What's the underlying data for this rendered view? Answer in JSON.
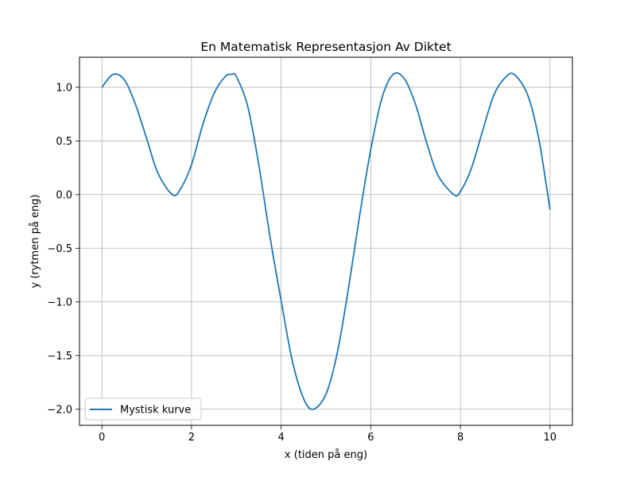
{
  "chart_data": {
    "type": "line",
    "title": "En Matematisk Representasjon Av Diktet",
    "xlabel": "x (tiden på eng)",
    "ylabel": "y (rytmen på eng)",
    "xlim": [
      -0.5,
      10.5
    ],
    "ylim": [
      -2.15,
      1.28
    ],
    "xticks": [
      0,
      2,
      4,
      6,
      8,
      10
    ],
    "xtick_labels": [
      "0",
      "2",
      "4",
      "6",
      "8",
      "10"
    ],
    "yticks": [
      -2.0,
      -1.5,
      -1.0,
      -0.5,
      0.0,
      0.5,
      1.0
    ],
    "ytick_labels": [
      "−2.0",
      "−1.5",
      "−1.0",
      "−0.5",
      "0.0",
      "0.5",
      "1.0"
    ],
    "grid": true,
    "legend_position": "lower-left",
    "series": [
      {
        "name": "Mystisk kurve",
        "color": "#1f77b4",
        "x": [
          0,
          0.25,
          0.5,
          0.75,
          1.0,
          1.25,
          1.571,
          1.75,
          2.0,
          2.25,
          2.5,
          2.75,
          2.9,
          3.0,
          3.25,
          3.5,
          3.75,
          4.0,
          4.25,
          4.5,
          4.712,
          5.0,
          5.25,
          5.5,
          5.75,
          6.0,
          6.25,
          6.5,
          6.75,
          7.0,
          7.25,
          7.5,
          7.854,
          8.0,
          8.25,
          8.5,
          8.75,
          9.0,
          9.2,
          9.5,
          9.75,
          10.0
        ],
        "y": [
          1.0,
          1.12,
          1.07,
          0.84,
          0.52,
          0.2,
          0.0,
          0.05,
          0.28,
          0.65,
          0.94,
          1.1,
          1.12,
          1.1,
          0.83,
          0.28,
          -0.39,
          -0.99,
          -1.55,
          -1.9,
          -2.0,
          -1.86,
          -1.48,
          -0.88,
          -0.2,
          0.42,
          0.9,
          1.12,
          1.08,
          0.84,
          0.48,
          0.18,
          0.0,
          0.03,
          0.25,
          0.6,
          0.93,
          1.09,
          1.12,
          0.93,
          0.52,
          -0.14
        ]
      }
    ]
  }
}
